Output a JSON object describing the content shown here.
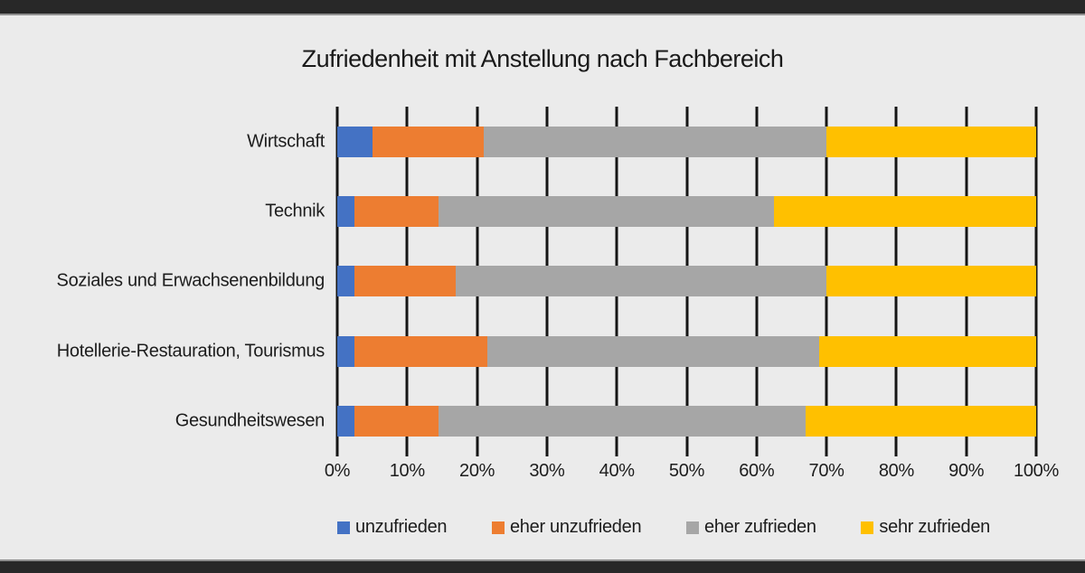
{
  "title": "Zufriedenheit mit Anstellung nach Fachbereich",
  "chart_data": {
    "type": "bar",
    "orientation": "horizontal",
    "stacked": true,
    "stacked_total": 100,
    "title": "Zufriedenheit mit Anstellung nach Fachbereich",
    "categories": [
      "Wirtschaft",
      "Technik",
      "Soziales und Erwachsenenbildung",
      "Hotellerie-Restauration, Tourismus",
      "Gesundheitswesen"
    ],
    "series": [
      {
        "name": "unzufrieden",
        "color": "#4472c4",
        "values": [
          5,
          2.5,
          2.5,
          2.5,
          2.5
        ]
      },
      {
        "name": "eher unzufrieden",
        "color": "#ed7d31",
        "values": [
          16,
          12,
          14.5,
          19,
          12
        ]
      },
      {
        "name": "eher zufrieden",
        "color": "#a6a6a6",
        "values": [
          49,
          48,
          53,
          47.5,
          52.5
        ]
      },
      {
        "name": "sehr zufrieden",
        "color": "#ffc000",
        "values": [
          30,
          37.5,
          30,
          31,
          33
        ]
      }
    ],
    "xlabel": "",
    "ylabel": "",
    "x_axis": {
      "min": 0,
      "max": 100,
      "tick_step": 10,
      "tick_labels": [
        "0%",
        "10%",
        "20%",
        "30%",
        "40%",
        "50%",
        "60%",
        "70%",
        "80%",
        "90%",
        "100%"
      ],
      "grid": true,
      "grid_color": "#151515"
    },
    "legend": {
      "position": "bottom",
      "entries": [
        "unzufrieden",
        "eher unzufrieden",
        "eher zufrieden",
        "sehr zufrieden"
      ]
    },
    "background_color": "#ebebeb",
    "frame_bar_color": "#282828"
  }
}
